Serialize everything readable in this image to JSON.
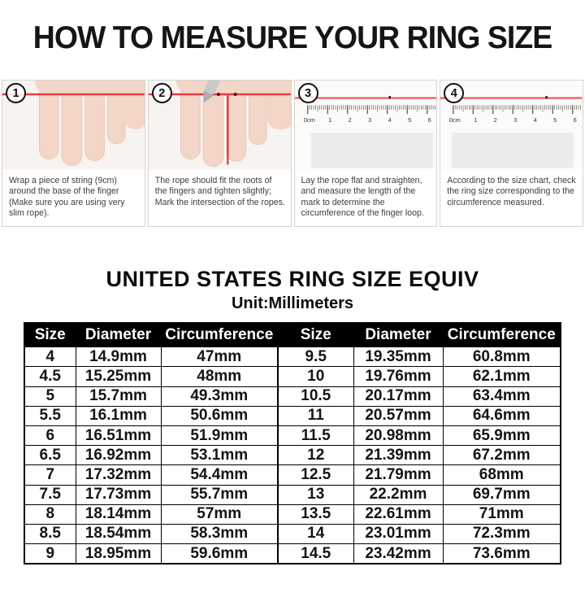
{
  "title": "HOW TO MEASURE YOUR RING SIZE",
  "steps": [
    {
      "number": "1",
      "caption": "Wrap a piece of string (9cm) around the base of the finger (Make sure you are using very slim rope)."
    },
    {
      "number": "2",
      "caption": "The rope should fit the roots of the fingers and tighten slightly; Mark the intersection of the ropes."
    },
    {
      "number": "3",
      "caption": "Lay the rope flat and straighten, and measure the length of the mark to determine the circumference of the finger loop."
    },
    {
      "number": "4",
      "caption": "According to the size chart, check the ring size corresponding to the circumference measured."
    }
  ],
  "ruler_labels": [
    "0cm",
    "1",
    "2",
    "3",
    "4",
    "5",
    "6"
  ],
  "size_chart": {
    "title": "UNITED STATES RING SIZE EQUIV",
    "subtitle": "Unit:Millimeters",
    "headers": [
      "Size",
      "Diameter",
      "Circumference",
      "Size",
      "Diameter",
      "Circumference"
    ],
    "rows": [
      [
        "4",
        "14.9mm",
        "47mm",
        "9.5",
        "19.35mm",
        "60.8mm"
      ],
      [
        "4.5",
        "15.25mm",
        "48mm",
        "10",
        "19.76mm",
        "62.1mm"
      ],
      [
        "5",
        "15.7mm",
        "49.3mm",
        "10.5",
        "20.17mm",
        "63.4mm"
      ],
      [
        "5.5",
        "16.1mm",
        "50.6mm",
        "11",
        "20.57mm",
        "64.6mm"
      ],
      [
        "6",
        "16.51mm",
        "51.9mm",
        "11.5",
        "20.98mm",
        "65.9mm"
      ],
      [
        "6.5",
        "16.92mm",
        "53.1mm",
        "12",
        "21.39mm",
        "67.2mm"
      ],
      [
        "7",
        "17.32mm",
        "54.4mm",
        "12.5",
        "21.79mm",
        "68mm"
      ],
      [
        "7.5",
        "17.73mm",
        "55.7mm",
        "13",
        "22.2mm",
        "69.7mm"
      ],
      [
        "8",
        "18.14mm",
        "57mm",
        "13.5",
        "22.61mm",
        "71mm"
      ],
      [
        "8.5",
        "18.54mm",
        "58.3mm",
        "14",
        "23.01mm",
        "72.3mm"
      ],
      [
        "9",
        "18.95mm",
        "59.6mm",
        "14.5",
        "23.42mm",
        "73.6mm"
      ]
    ]
  },
  "colors": {
    "string_red": "#e5383f",
    "ruler_string_red": "#ee565c",
    "skin": "#f3d6c8",
    "skin_edge": "#e7c0af",
    "photo_bg": "#f6f3f1",
    "ruler_bg": "#fcfbfa",
    "table_header_bg": "#000000",
    "table_header_text": "#ffffff"
  }
}
